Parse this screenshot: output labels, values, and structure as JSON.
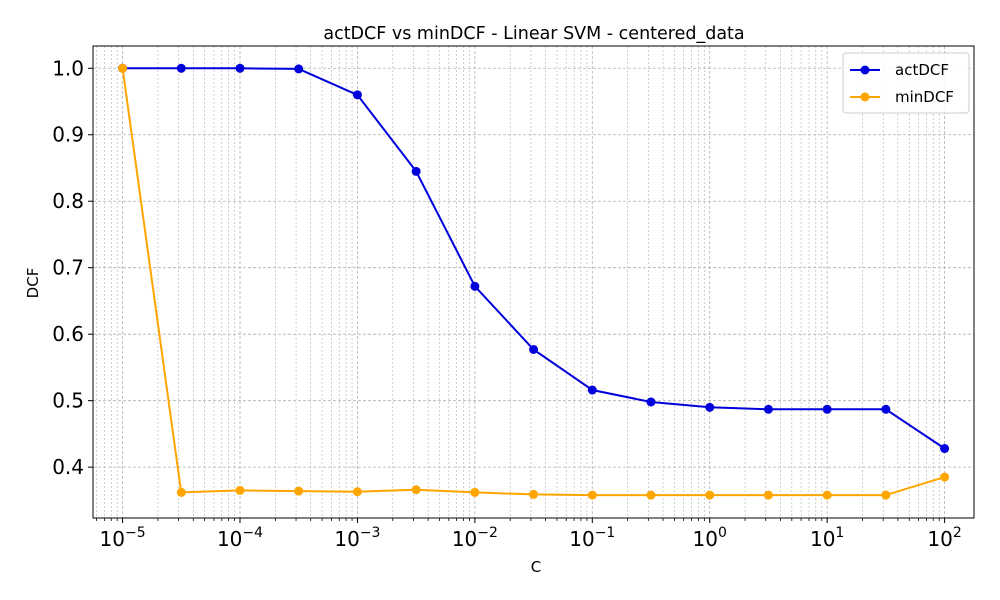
{
  "chart_data": {
    "type": "line",
    "title": "actDCF vs minDCF - Linear SVM - centered_data",
    "xlabel": "C",
    "ylabel": "DCF",
    "xscale": "log",
    "xlim": [
      5.6e-06,
      178
    ],
    "ylim": [
      0.3235,
      1.0335
    ],
    "x": [
      1e-05,
      3.16e-05,
      0.0001,
      0.000316,
      0.001,
      0.00316,
      0.01,
      0.0316,
      0.1,
      0.316,
      1,
      3.16,
      10,
      31.6,
      100
    ],
    "x_tick_labels": [
      {
        "value": 1e-05,
        "base": "10",
        "exp": "−5"
      },
      {
        "value": 0.0001,
        "base": "10",
        "exp": "−4"
      },
      {
        "value": 0.001,
        "base": "10",
        "exp": "−3"
      },
      {
        "value": 0.01,
        "base": "10",
        "exp": "−2"
      },
      {
        "value": 0.1,
        "base": "10",
        "exp": "−1"
      },
      {
        "value": 1,
        "base": "10",
        "exp": "0"
      },
      {
        "value": 10,
        "base": "10",
        "exp": "1"
      },
      {
        "value": 100,
        "base": "10",
        "exp": "2"
      }
    ],
    "y_ticks": [
      0.4,
      0.5,
      0.6,
      0.7,
      0.8,
      0.9,
      1.0
    ],
    "y_tick_labels": [
      "0.4",
      "0.5",
      "0.6",
      "0.7",
      "0.8",
      "0.9",
      "1.0"
    ],
    "series": [
      {
        "name": "actDCF",
        "color": "#0000dd",
        "values": [
          1.0,
          1.0,
          1.0,
          0.999,
          0.96,
          0.845,
          0.672,
          0.577,
          0.516,
          0.498,
          0.49,
          0.487,
          0.487,
          0.487,
          0.428
        ]
      },
      {
        "name": "minDCF",
        "color": "#ffa500",
        "values": [
          1.0,
          0.362,
          0.365,
          0.364,
          0.363,
          0.366,
          0.362,
          0.359,
          0.358,
          0.358,
          0.358,
          0.358,
          0.358,
          0.358,
          0.385
        ]
      }
    ],
    "grid": true,
    "legend_position": "top-right"
  }
}
